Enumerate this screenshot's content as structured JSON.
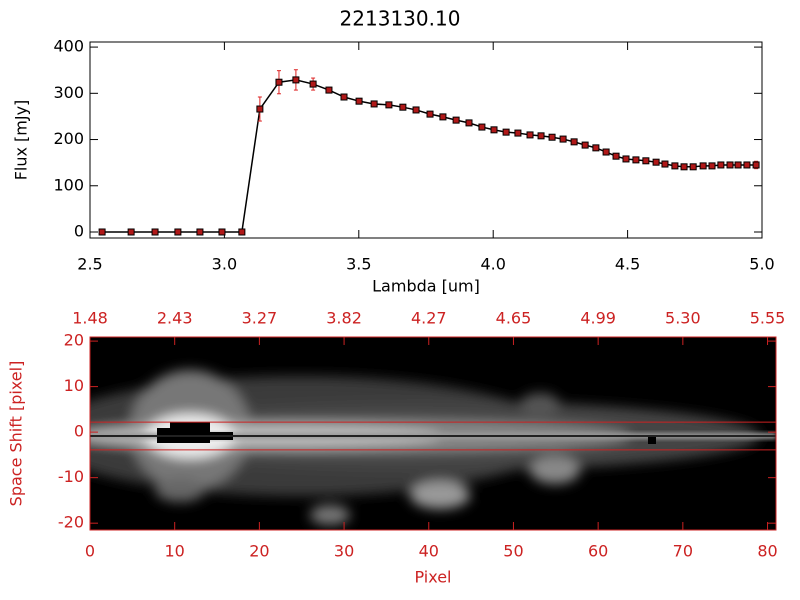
{
  "chart_data": [
    {
      "type": "line",
      "title": "2213130.10",
      "x_label": "Lambda [um]",
      "y_label": "Flux [mJy]",
      "x": [
        2.545,
        2.653,
        2.742,
        2.827,
        2.909,
        2.991,
        3.065,
        3.132,
        3.203,
        3.266,
        3.33,
        3.389,
        3.445,
        3.501,
        3.557,
        3.612,
        3.664,
        3.713,
        3.765,
        3.813,
        3.862,
        3.91,
        3.958,
        4.003,
        4.048,
        4.092,
        4.137,
        4.178,
        4.219,
        4.26,
        4.301,
        4.342,
        4.382,
        4.42,
        4.457,
        4.494,
        4.531,
        4.568,
        4.606,
        4.639,
        4.676,
        4.71,
        4.744,
        4.781,
        4.814,
        4.847,
        4.881,
        4.911,
        4.944,
        4.978
      ],
      "values": [
        0,
        0,
        0,
        0,
        0,
        0,
        0,
        266,
        324,
        329,
        320,
        307,
        292,
        283,
        277,
        275,
        270,
        264,
        255,
        249,
        242,
        236,
        227,
        221,
        216,
        214,
        210,
        208,
        205,
        201,
        195,
        188,
        182,
        173,
        164,
        158,
        156,
        154,
        151,
        147,
        143,
        141,
        141,
        143,
        143,
        145,
        145,
        145,
        145,
        145
      ],
      "errors": [
        3,
        3,
        3,
        3,
        3,
        3,
        3,
        26,
        25,
        22,
        13,
        5,
        5,
        5,
        5,
        5,
        5,
        5,
        5,
        5,
        5,
        5,
        5,
        5,
        5,
        5,
        5,
        5,
        5,
        5,
        5,
        5,
        5,
        5,
        5,
        5,
        5,
        5,
        5,
        5,
        5,
        5,
        5,
        5,
        5,
        5,
        5,
        5,
        5,
        8
      ],
      "color": "#000000",
      "marker_color": "#b01818",
      "error_color": "#dd2222",
      "xlim": [
        2.5,
        5.0
      ],
      "xticks": [
        2.5,
        {
          "value": 3,
          "label": "3.0"
        },
        3.5,
        {
          "value": 4,
          "label": "4.0"
        },
        4.5,
        {
          "value": 5,
          "label": "5.0"
        }
      ],
      "ylim": [
        -13,
        411
      ],
      "yticks": [
        0,
        100,
        200,
        300,
        400
      ]
    },
    {
      "type": "image",
      "x_label": "Pixel",
      "y_label": "Space Shift [pixel]",
      "color": "#cc2222",
      "xlim": [
        0,
        81
      ],
      "xticks": [
        0,
        10,
        20,
        30,
        40,
        50,
        60,
        70,
        80
      ],
      "x2ticks": [
        1.48,
        2.43,
        3.27,
        3.82,
        4.27,
        4.65,
        4.99,
        {
          "value": 5.3,
          "label": "5.30"
        },
        5.55
      ],
      "ylim": [
        -21.5,
        20.9
      ],
      "yticks": [
        -20,
        -10,
        0,
        10,
        20
      ],
      "aperture": [
        2.2,
        -3.9
      ]
    }
  ]
}
